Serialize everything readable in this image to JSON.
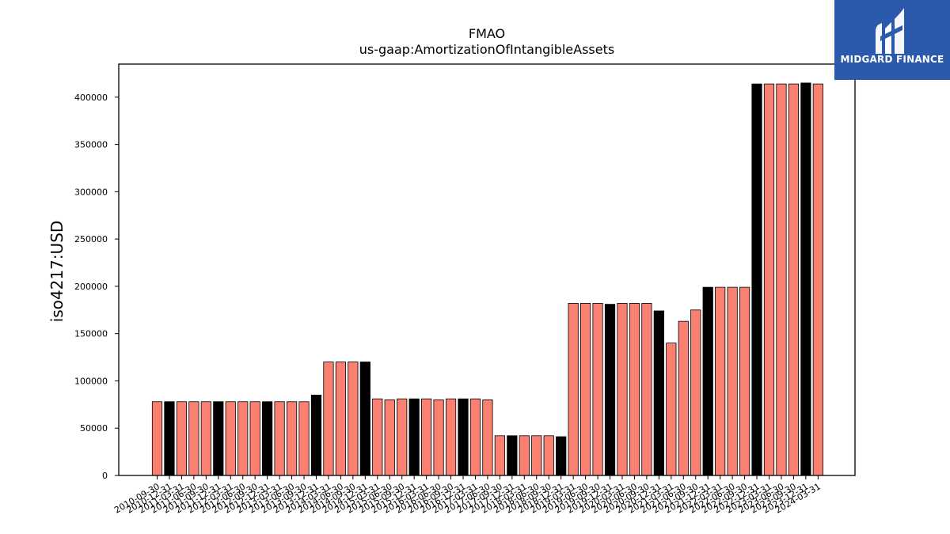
{
  "logo": {
    "text": "MIDGARD FINANCE",
    "icon": "midgard-m-logo-icon",
    "background": "#2b5aad"
  },
  "chart_data": {
    "type": "bar",
    "title": "FMAO",
    "subtitle": "us-gaap:AmortizationOfIntangibleAssets",
    "ylabel": "iso4217:USD",
    "xlabel": "",
    "ylim": [
      0,
      435000
    ],
    "yticks": [
      0,
      50000,
      100000,
      150000,
      200000,
      250000,
      300000,
      350000,
      400000
    ],
    "colors": {
      "quarterly": "#fa8072",
      "annual": "#000000"
    },
    "categories": [
      "2010-09-30",
      "2010-12-31",
      "2011-03-31",
      "2011-06-30",
      "2011-09-30",
      "2011-12-31",
      "2012-03-31",
      "2012-06-30",
      "2012-09-30",
      "2012-12-31",
      "2013-03-31",
      "2013-06-30",
      "2013-09-30",
      "2013-12-31",
      "2014-03-31",
      "2014-06-30",
      "2014-09-30",
      "2014-12-31",
      "2015-03-31",
      "2015-06-30",
      "2015-09-30",
      "2015-12-31",
      "2016-03-31",
      "2016-06-30",
      "2016-09-30",
      "2016-12-31",
      "2017-03-31",
      "2017-06-30",
      "2017-09-30",
      "2017-12-31",
      "2018-03-31",
      "2018-06-30",
      "2018-09-30",
      "2018-12-31",
      "2019-03-31",
      "2019-06-30",
      "2019-09-30",
      "2019-12-31",
      "2020-03-31",
      "2020-06-30",
      "2020-09-30",
      "2020-12-31",
      "2021-03-31",
      "2021-06-30",
      "2021-09-30",
      "2021-12-31",
      "2022-03-31",
      "2022-06-30",
      "2022-09-30",
      "2022-12-31",
      "2023-03-31",
      "2023-06-30",
      "2023-09-30",
      "2023-12-31",
      "2024-03-31"
    ],
    "values": [
      78000,
      78000,
      78000,
      78000,
      78000,
      78000,
      78000,
      78000,
      78000,
      78000,
      78000,
      78000,
      78000,
      85000,
      120000,
      120000,
      120000,
      120000,
      81000,
      80000,
      81000,
      81000,
      81000,
      80000,
      81000,
      81000,
      81000,
      80000,
      42000,
      42000,
      42000,
      42000,
      42000,
      41000,
      182000,
      182000,
      182000,
      181000,
      182000,
      182000,
      182000,
      174000,
      140000,
      163000,
      175000,
      199000,
      199000,
      199000,
      199000,
      414000,
      414000,
      414000,
      414000,
      415000,
      414000
    ],
    "bar_kind": [
      "q",
      "a",
      "q",
      "q",
      "q",
      "a",
      "q",
      "q",
      "q",
      "a",
      "q",
      "q",
      "q",
      "a",
      "q",
      "q",
      "q",
      "a",
      "q",
      "q",
      "q",
      "a",
      "q",
      "q",
      "q",
      "a",
      "q",
      "q",
      "q",
      "a",
      "q",
      "q",
      "q",
      "a",
      "q",
      "q",
      "q",
      "a",
      "q",
      "q",
      "q",
      "a",
      "q",
      "q",
      "q",
      "a",
      "q",
      "q",
      "q",
      "a",
      "q",
      "q",
      "q",
      "a",
      "q"
    ],
    "xtick_labels": [
      "2010-09-30",
      "2010-12-31",
      "2011-03-31",
      "2011-06-30",
      "2011-09-30",
      "2011-12-31",
      "2012-03-31",
      "2012-06-30",
      "2012-09-30",
      "2012-12-31",
      "2013-03-31",
      "2013-06-30",
      "2013-09-30",
      "2013-12-31",
      "2014-03-31",
      "2014-06-30",
      "2014-09-30",
      "2014-12-31",
      "2015-03-31",
      "2015-06-30",
      "2015-09-30",
      "2015-12-31",
      "2016-03-31",
      "2016-06-30",
      "2016-09-30",
      "2016-12-31",
      "2017-03-31",
      "2017-06-30",
      "2017-09-30",
      "2017-12-31",
      "2018-03-31",
      "2018-06-30",
      "2018-09-30",
      "2018-12-31",
      "2019-03-31",
      "2019-06-30",
      "2019-09-30",
      "2019-12-31",
      "2020-03-31",
      "2020-06-30",
      "2020-09-30",
      "2020-12-31",
      "2021-03-31",
      "2021-06-30",
      "2021-09-30",
      "2021-12-31",
      "2022-03-31",
      "2022-06-30",
      "2022-09-30",
      "2022-12-31",
      "2023-03-31",
      "2023-06-30",
      "2023-09-30",
      "2023-12-31",
      "2024-03-31"
    ]
  }
}
